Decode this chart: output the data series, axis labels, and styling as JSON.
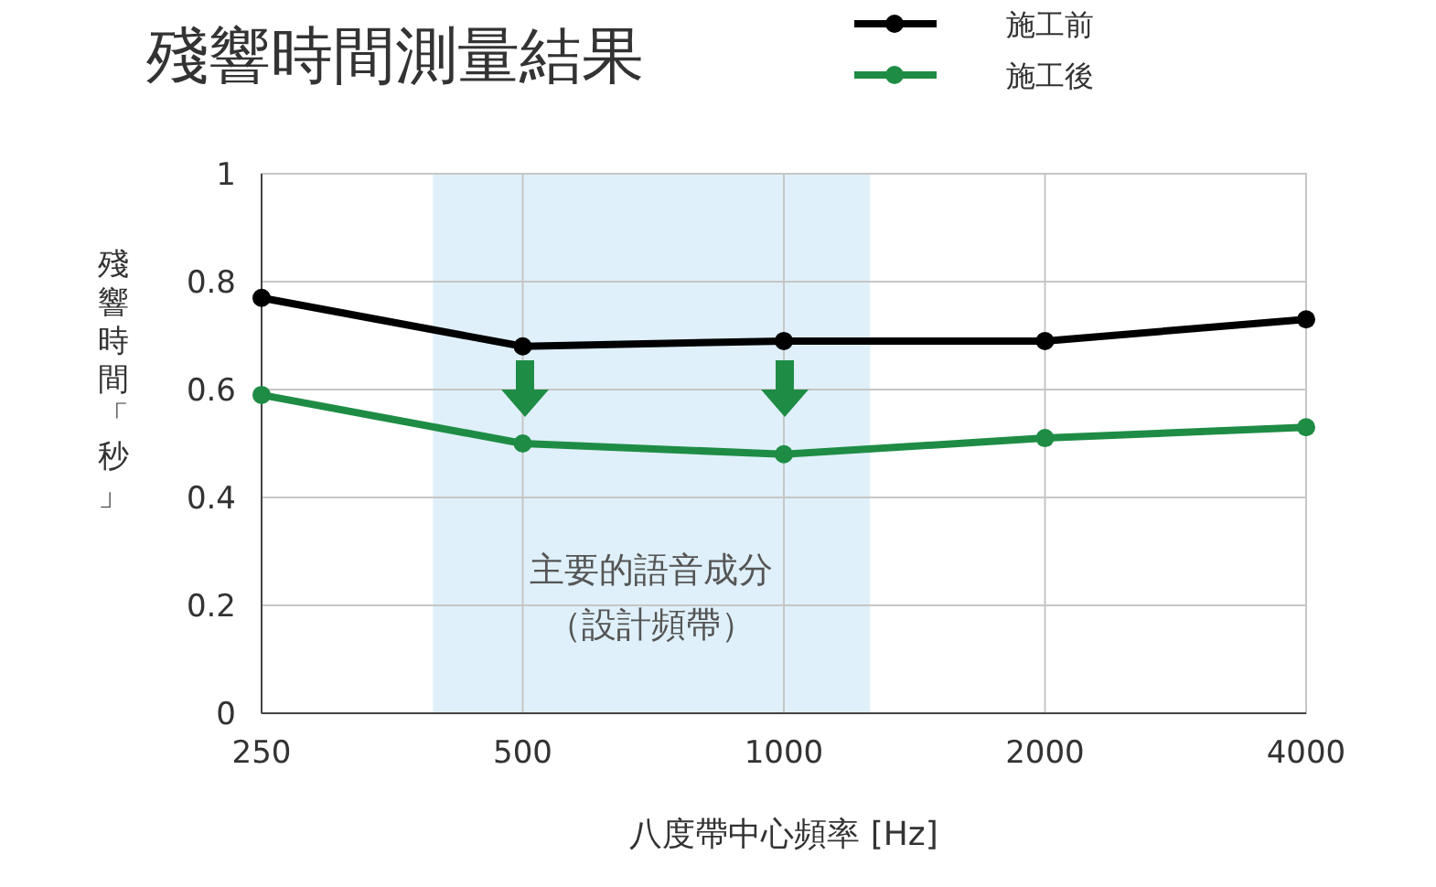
{
  "chart_data": {
    "type": "line",
    "title": "殘響時間測量結果",
    "xlabel": "八度帶中心頻率 [Hz]",
    "ylabel": "殘響時間「秒」",
    "x": [
      250,
      500,
      1000,
      2000,
      4000
    ],
    "log": "x",
    "xlim": [
      250,
      4000
    ],
    "xticks": [
      250,
      500,
      1000,
      2000,
      4000
    ],
    "ylim": [
      0,
      1
    ],
    "yticks": [
      0,
      0.2,
      0.4,
      0.6,
      0.8,
      1
    ],
    "grid": true,
    "legend": "top right",
    "marker": "circle",
    "line_style": "solid",
    "series": [
      {
        "name": "施工前",
        "color": "#000000",
        "values": [
          0.77,
          0.68,
          0.69,
          0.69,
          0.73
        ]
      },
      {
        "name": "施工後",
        "color": "#1e8c45",
        "values": [
          0.59,
          0.5,
          0.48,
          0.51,
          0.53
        ]
      }
    ],
    "bands": [
      {
        "axis": "x",
        "from": 394,
        "to": 1257,
        "label": "主要的語音成分（設計頻帶）",
        "color": "#dff0fa"
      }
    ]
  }
}
